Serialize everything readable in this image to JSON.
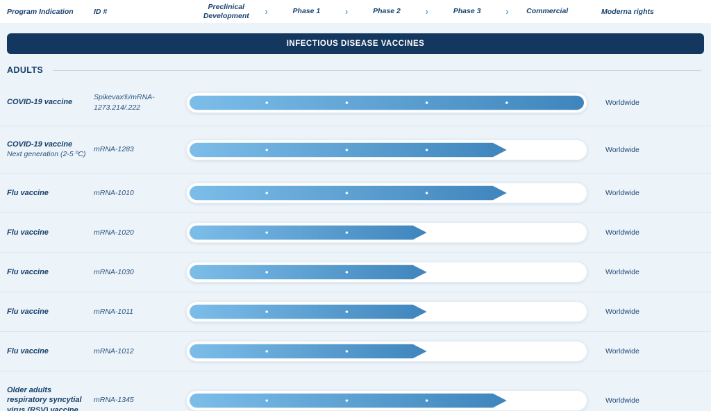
{
  "header": {
    "program_indication": "Program Indication",
    "id_label": "ID #",
    "phases": [
      "Preclinical Development",
      "Phase 1",
      "Phase 2",
      "Phase 3",
      "Commercial"
    ],
    "moderna_rights": "Moderna rights",
    "chevron_icon": "›"
  },
  "banner": {
    "title": "INFECTIOUS DISEASE VACCINES"
  },
  "section": {
    "title": "ADULTS"
  },
  "colors": {
    "background": "#ecf3f9",
    "banner_bg": "#14375f",
    "navy_text": "#17406b",
    "bar_gradient_start": "#7cbde9",
    "bar_gradient_end": "#3f85bc",
    "chevron": "#5aa8de",
    "track_border": "#e5ecf4",
    "separator": "#dce7f0"
  },
  "rows": [
    {
      "program": "COVID-19 vaccine",
      "subtitle": "",
      "id": "Spikevax®/mRNA-1273.214/.222",
      "rights": "Worldwide",
      "progress": {
        "stage_reached": "Commercial",
        "fraction": 1.0,
        "shape": "pill",
        "milestone_dots": 4
      }
    },
    {
      "program": "COVID-19 vaccine",
      "subtitle": "Next generation (2-5 ºC)",
      "id": "mRNA-1283",
      "rights": "Worldwide",
      "progress": {
        "stage_reached": "Phase 3",
        "fraction": 0.8,
        "shape": "arrow",
        "milestone_dots": 3
      }
    },
    {
      "program": "Flu vaccine",
      "subtitle": "",
      "id": "mRNA-1010",
      "rights": "Worldwide",
      "progress": {
        "stage_reached": "Phase 3",
        "fraction": 0.8,
        "shape": "arrow",
        "milestone_dots": 3
      }
    },
    {
      "program": "Flu vaccine",
      "subtitle": "",
      "id": "mRNA-1020",
      "rights": "Worldwide",
      "progress": {
        "stage_reached": "Phase 2",
        "fraction": 0.6,
        "shape": "arrow",
        "milestone_dots": 2
      }
    },
    {
      "program": "Flu vaccine",
      "subtitle": "",
      "id": "mRNA-1030",
      "rights": "Worldwide",
      "progress": {
        "stage_reached": "Phase 2",
        "fraction": 0.6,
        "shape": "arrow",
        "milestone_dots": 2
      }
    },
    {
      "program": "Flu vaccine",
      "subtitle": "",
      "id": "mRNA-1011",
      "rights": "Worldwide",
      "progress": {
        "stage_reached": "Phase 2",
        "fraction": 0.6,
        "shape": "arrow",
        "milestone_dots": 2
      }
    },
    {
      "program": "Flu vaccine",
      "subtitle": "",
      "id": "mRNA-1012",
      "rights": "Worldwide",
      "progress": {
        "stage_reached": "Phase 2",
        "fraction": 0.6,
        "shape": "arrow",
        "milestone_dots": 2
      }
    },
    {
      "program": "Older adults respiratory syncytial virus (RSV) vaccine",
      "subtitle": "",
      "id": "mRNA-1345",
      "rights": "Worldwide",
      "progress": {
        "stage_reached": "Phase 3",
        "fraction": 0.8,
        "shape": "arrow",
        "milestone_dots": 3
      }
    }
  ],
  "chart_data": {
    "type": "bar",
    "orientation": "horizontal",
    "title": "INFECTIOUS DISEASE VACCINES",
    "section": "ADULTS",
    "phase_axis": [
      "Preclinical Development",
      "Phase 1",
      "Phase 2",
      "Phase 3",
      "Commercial"
    ],
    "axis_range_fraction": [
      0,
      1
    ],
    "bars": [
      {
        "label": "COVID-19 vaccine",
        "id": "Spikevax®/mRNA-1273.214/.222",
        "progress_fraction": 1.0,
        "stage_reached": "Commercial",
        "rights": "Worldwide"
      },
      {
        "label": "COVID-19 vaccine — Next generation (2-5 ºC)",
        "id": "mRNA-1283",
        "progress_fraction": 0.8,
        "stage_reached": "Phase 3",
        "rights": "Worldwide"
      },
      {
        "label": "Flu vaccine",
        "id": "mRNA-1010",
        "progress_fraction": 0.8,
        "stage_reached": "Phase 3",
        "rights": "Worldwide"
      },
      {
        "label": "Flu vaccine",
        "id": "mRNA-1020",
        "progress_fraction": 0.6,
        "stage_reached": "Phase 2",
        "rights": "Worldwide"
      },
      {
        "label": "Flu vaccine",
        "id": "mRNA-1030",
        "progress_fraction": 0.6,
        "stage_reached": "Phase 2",
        "rights": "Worldwide"
      },
      {
        "label": "Flu vaccine",
        "id": "mRNA-1011",
        "progress_fraction": 0.6,
        "stage_reached": "Phase 2",
        "rights": "Worldwide"
      },
      {
        "label": "Flu vaccine",
        "id": "mRNA-1012",
        "progress_fraction": 0.6,
        "stage_reached": "Phase 2",
        "rights": "Worldwide"
      },
      {
        "label": "Older adults respiratory syncytial virus (RSV) vaccine",
        "id": "mRNA-1345",
        "progress_fraction": 0.8,
        "stage_reached": "Phase 3",
        "rights": "Worldwide"
      }
    ]
  }
}
